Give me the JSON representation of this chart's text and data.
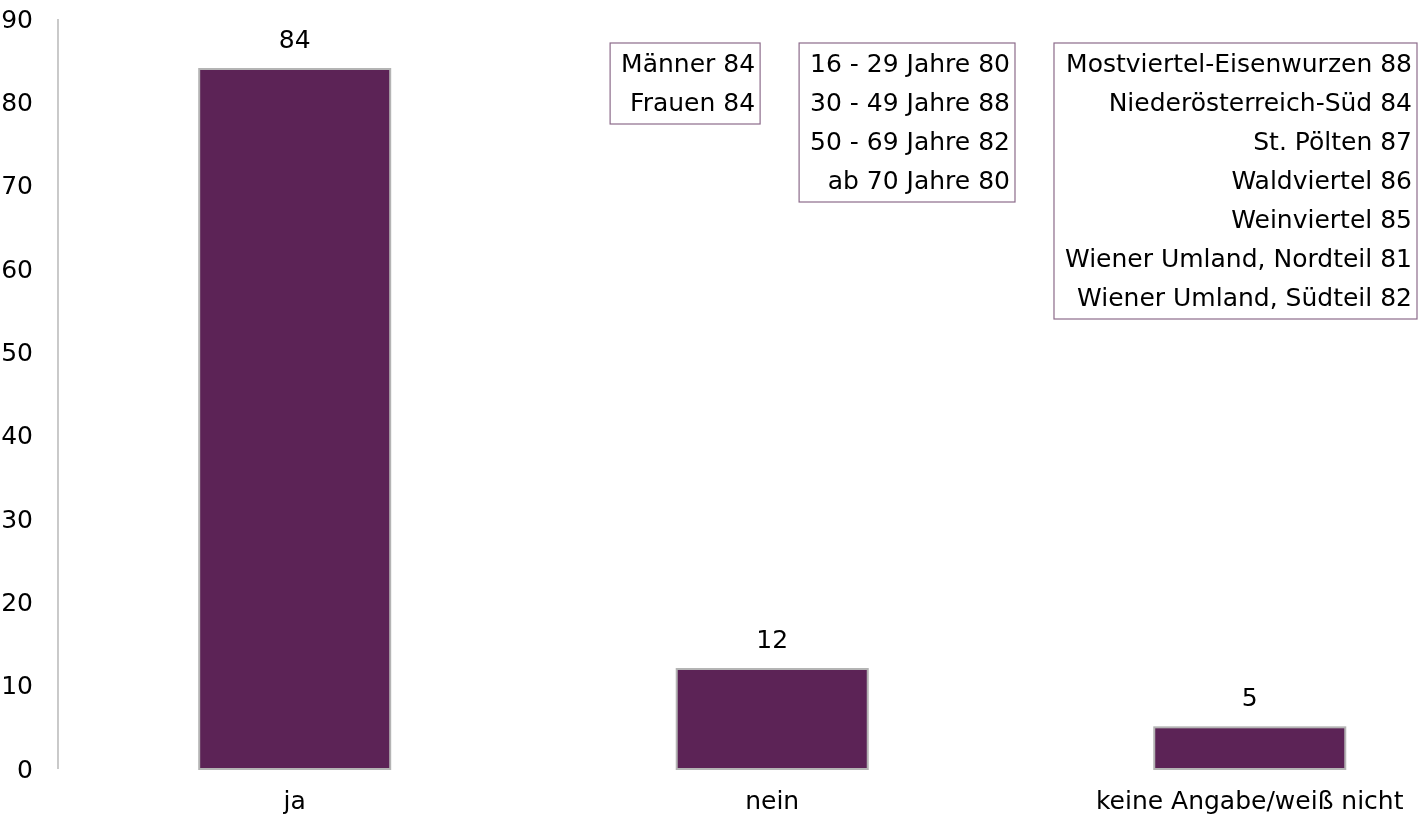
{
  "chart_data": {
    "type": "bar",
    "categories": [
      "ja",
      "nein",
      "keine Angabe/weiß nicht"
    ],
    "values": [
      84,
      12,
      5
    ],
    "color": "#5c2356",
    "ylim": [
      0,
      90
    ],
    "yticks": [
      0,
      10,
      20,
      30,
      40,
      50,
      60,
      70,
      80,
      90
    ],
    "data_labels": true,
    "annotations": [
      "Männer 84\nFrauen 84",
      "16 - 29 Jahre 80\n30 - 49 Jahre 88\n50 - 69 Jahre 82\nab 70 Jahre 80",
      "Mostviertel-Eisenwurzen 88\nNiederösterreich-Süd 84\nSt. Pölten 87\nWaldviertel 86\nWeinviertel 85\nWiener Umland, Nordteil 81\nWiener Umland, Südteil 82"
    ]
  }
}
